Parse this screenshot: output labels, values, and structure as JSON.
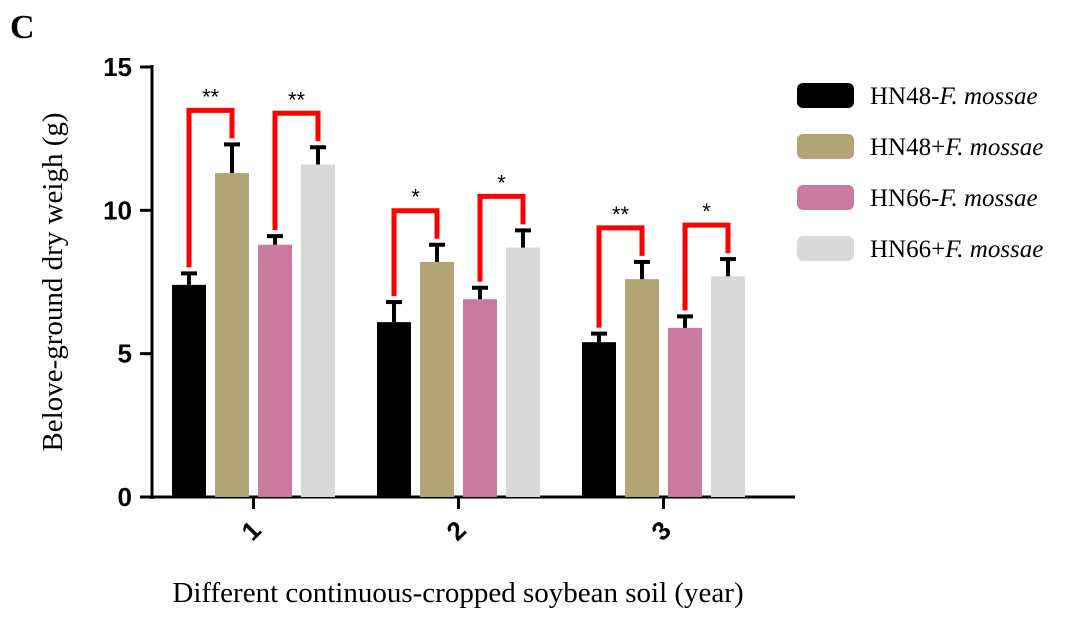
{
  "panel_label": "C",
  "chart_data": {
    "type": "bar",
    "title": "",
    "xlabel": "Different continuous-cropped soybean soil (year)",
    "ylabel": "Belove-ground dry weigh (g)",
    "ylim": [
      0,
      15
    ],
    "yticks": [
      0,
      5,
      10,
      15
    ],
    "categories": [
      "1",
      "2",
      "3"
    ],
    "series": [
      {
        "name": "HN48-",
        "species": "F. mossae",
        "color": "#000000",
        "values": [
          7.4,
          6.1,
          5.4
        ],
        "errors": [
          0.4,
          0.7,
          0.3
        ]
      },
      {
        "name": "HN48+",
        "species": "F. mossae",
        "color": "#b2a474",
        "values": [
          11.3,
          8.2,
          7.6
        ],
        "errors": [
          1.0,
          0.6,
          0.6
        ]
      },
      {
        "name": "HN66-",
        "species": "F. mossae",
        "color": "#c97a9e",
        "values": [
          8.8,
          6.9,
          5.9
        ],
        "errors": [
          0.3,
          0.4,
          0.4
        ]
      },
      {
        "name": "HN66+",
        "species": "F. mossae",
        "color": "#d9d9d9",
        "values": [
          11.6,
          8.7,
          7.7
        ],
        "errors": [
          0.6,
          0.6,
          0.6
        ]
      }
    ],
    "significance": [
      {
        "category": 0,
        "pair": [
          0,
          1
        ],
        "label": "**"
      },
      {
        "category": 0,
        "pair": [
          2,
          3
        ],
        "label": "**"
      },
      {
        "category": 1,
        "pair": [
          0,
          1
        ],
        "label": "*"
      },
      {
        "category": 1,
        "pair": [
          2,
          3
        ],
        "label": "*"
      },
      {
        "category": 2,
        "pair": [
          0,
          1
        ],
        "label": "**"
      },
      {
        "category": 2,
        "pair": [
          2,
          3
        ],
        "label": "*"
      }
    ],
    "significance_color": "#ff0000",
    "legend_position": "right"
  }
}
